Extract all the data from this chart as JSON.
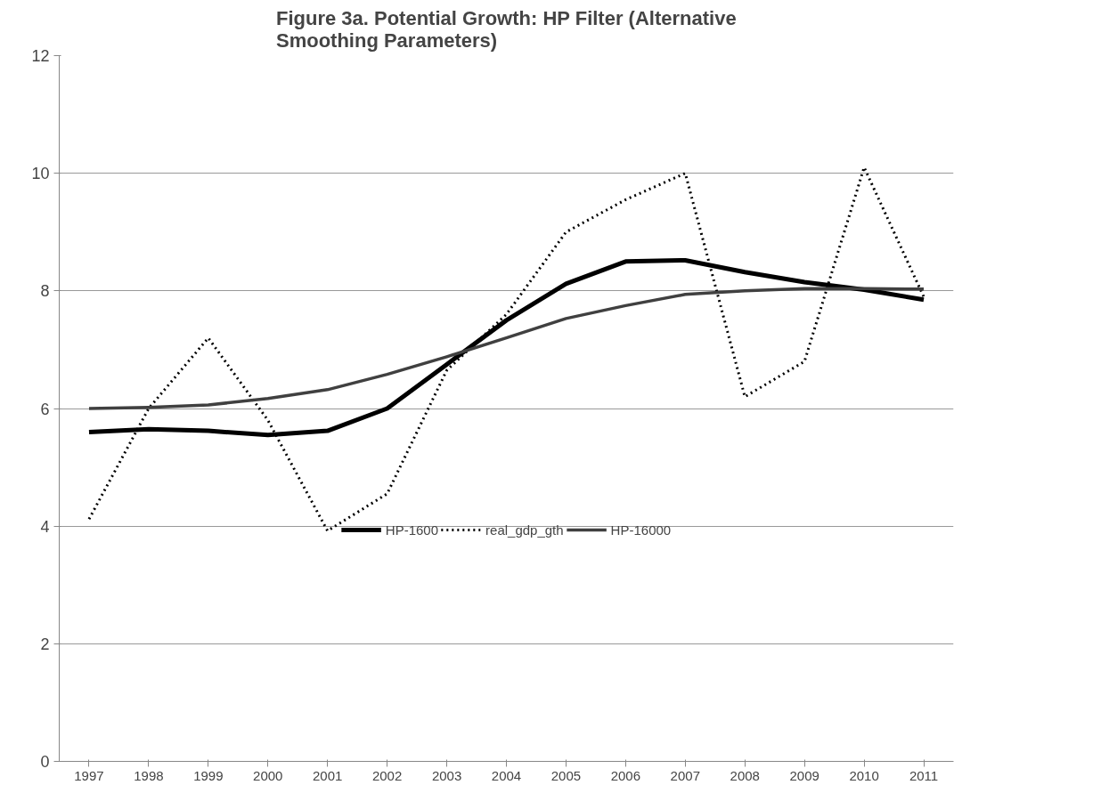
{
  "chart_data": {
    "type": "line",
    "title": "Figure 3a. Potential Growth: HP Filter (Alternative Smoothing Parameters)",
    "categories": [
      "1997",
      "1998",
      "1999",
      "2000",
      "2001",
      "2002",
      "2003",
      "2004",
      "2005",
      "2006",
      "2007",
      "2008",
      "2009",
      "2010",
      "2011"
    ],
    "series": [
      {
        "name": "HP-1600",
        "color": "#000000",
        "line_style": "solid",
        "values": [
          5.6,
          5.65,
          5.62,
          5.55,
          5.62,
          6.0,
          6.75,
          7.5,
          8.12,
          8.5,
          8.52,
          8.32,
          8.15,
          8.02,
          7.85
        ]
      },
      {
        "name": "real_gdp_gth",
        "color": "#000000",
        "line_style": "dotted",
        "values": [
          4.12,
          6.0,
          7.2,
          5.8,
          3.92,
          4.55,
          6.65,
          7.6,
          9.0,
          9.55,
          10.0,
          6.2,
          6.8,
          10.1,
          7.9
        ]
      },
      {
        "name": "HP-16000",
        "color": "#404040",
        "line_style": "solid",
        "values": [
          6.0,
          6.02,
          6.06,
          6.17,
          6.32,
          6.58,
          6.88,
          7.2,
          7.53,
          7.75,
          7.94,
          8.0,
          8.04,
          8.04,
          8.03
        ]
      }
    ],
    "ylim": [
      0,
      12
    ],
    "yticks": [
      0,
      2,
      4,
      6,
      8,
      10,
      12
    ],
    "grid": "y",
    "legend": "bottom",
    "marker": "none"
  }
}
